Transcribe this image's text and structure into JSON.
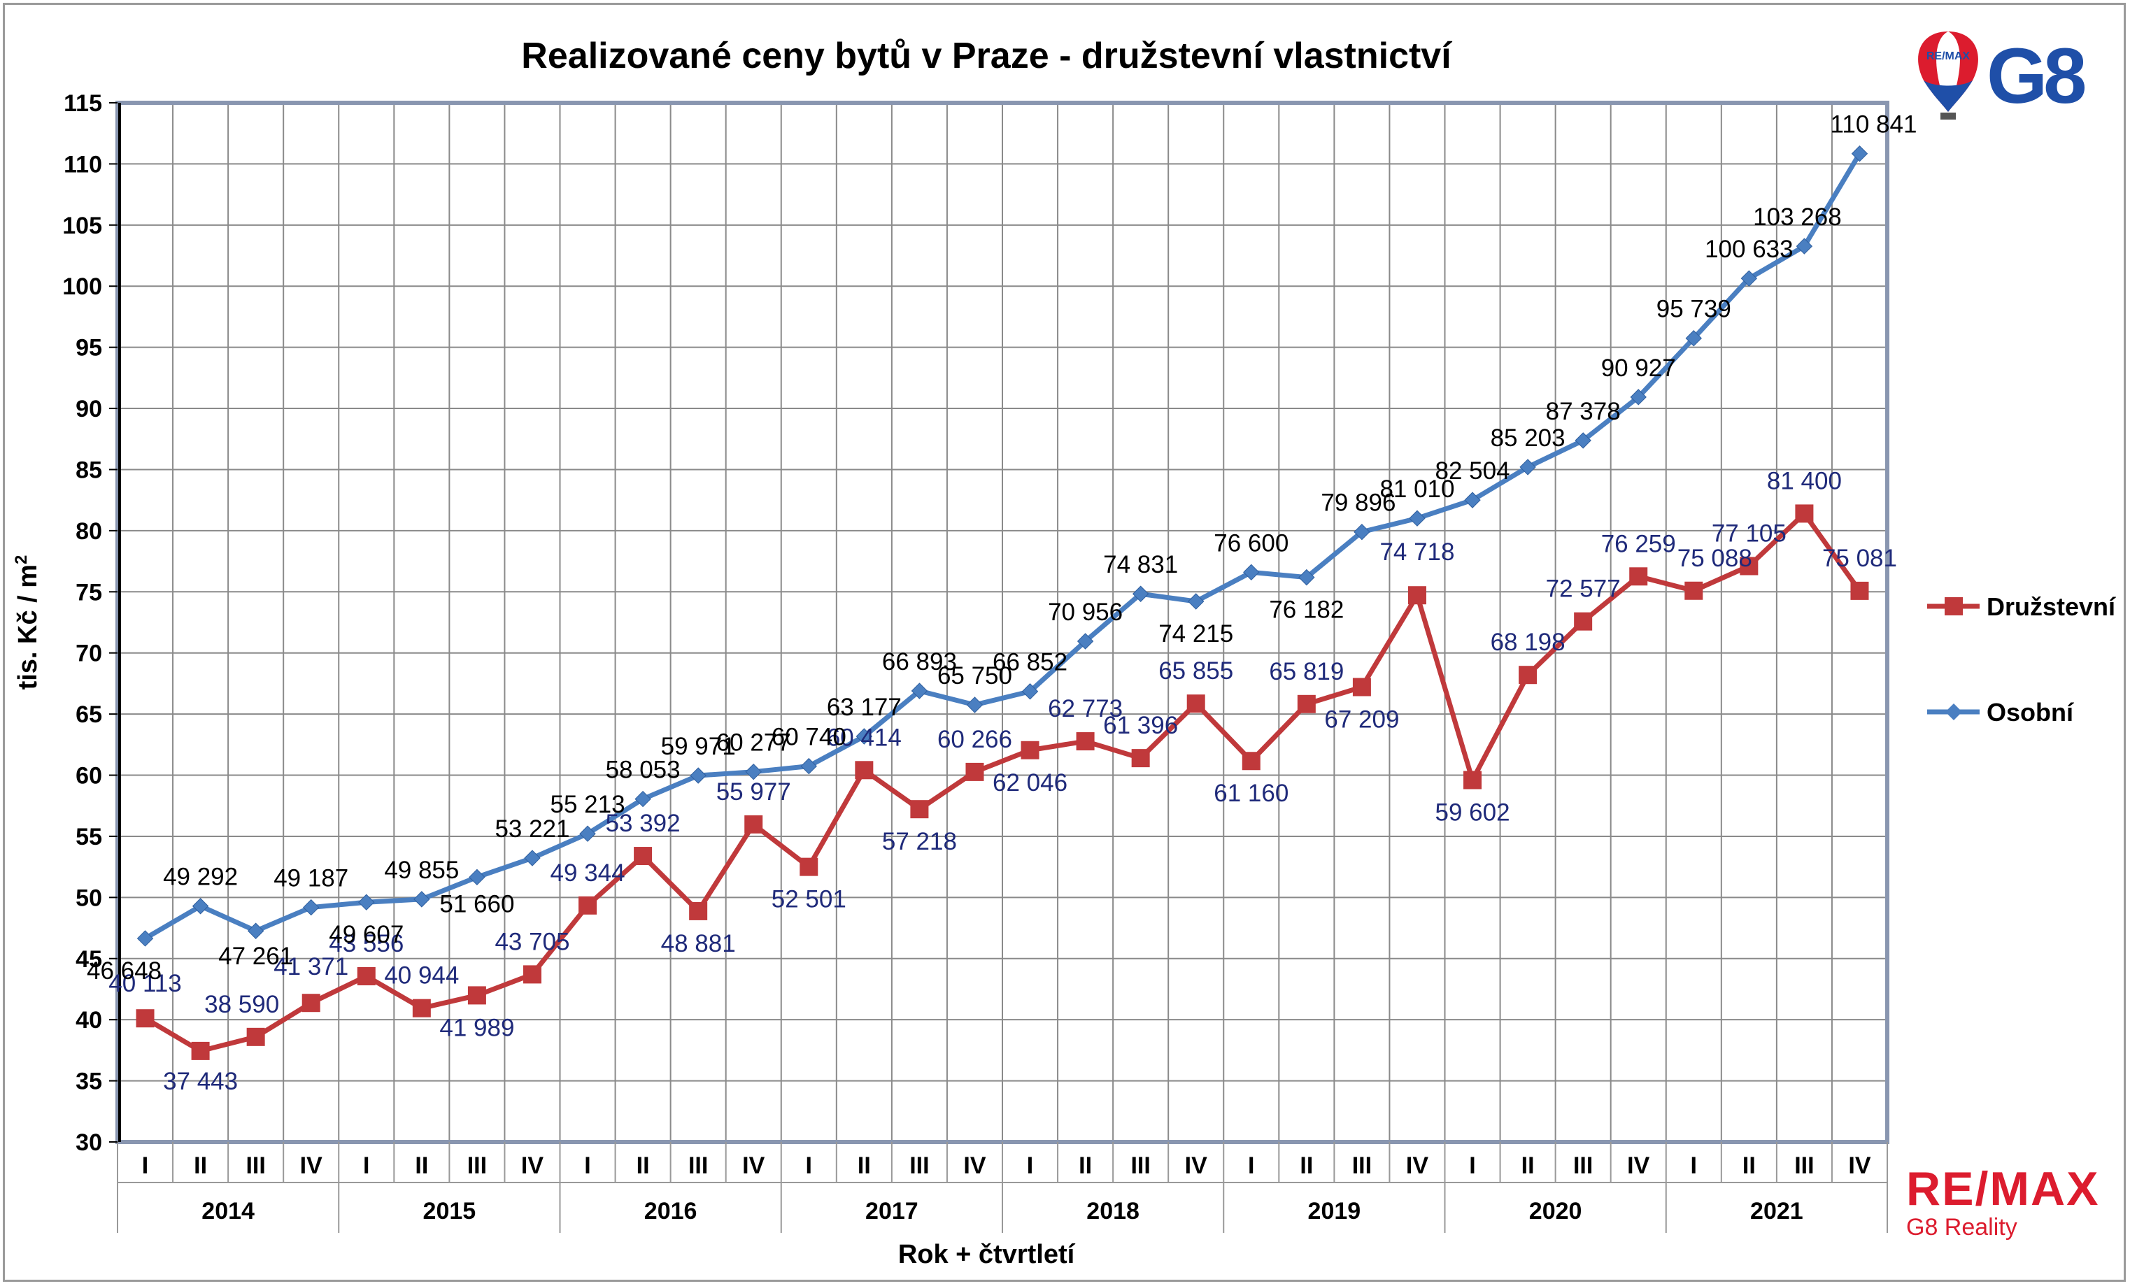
{
  "logos": {
    "balloon_text": "RE/MAX",
    "g8_text": "G8",
    "remax_wordmark": "RE/MAX",
    "remax_sub": "G8 Reality"
  },
  "colors": {
    "druzstevni": "#c0393b",
    "osobni": "#4a7fc1",
    "grid": "#8a8a8a",
    "plot_border": "#8996b0",
    "remax_red": "#dc1c2e",
    "remax_blue": "#1f4fa8"
  },
  "chart_data": {
    "type": "line",
    "title": "Realizované ceny bytů v Praze - družstevní vlastnictví",
    "xlabel": "Rok + čtvrtletí",
    "ylabel": "tis. Kč / m",
    "ylabel_sup": "2",
    "ylim": [
      30,
      115
    ],
    "yticks": [
      "30",
      "35",
      "40",
      "45",
      "50",
      "55",
      "60",
      "65",
      "70",
      "75",
      "80",
      "85",
      "90",
      "95",
      "100",
      "105",
      "110",
      "115"
    ],
    "grid": true,
    "legend_position": "right",
    "quarters": [
      "I",
      "II",
      "III",
      "IV",
      "I",
      "II",
      "III",
      "IV",
      "I",
      "II",
      "III",
      "IV",
      "I",
      "II",
      "III",
      "IV",
      "I",
      "II",
      "III",
      "IV",
      "I",
      "II",
      "III",
      "IV",
      "I",
      "II",
      "III",
      "IV",
      "I",
      "II",
      "III",
      "IV"
    ],
    "years": [
      "2014",
      "2015",
      "2016",
      "2017",
      "2018",
      "2019",
      "2020",
      "2021"
    ],
    "series": [
      {
        "name": "Družstevní",
        "color": "#c0393b",
        "marker": "square",
        "values": [
          40.113,
          37.443,
          38.59,
          41.371,
          43.556,
          40.944,
          41.989,
          43.705,
          49.344,
          53.392,
          48.881,
          55.977,
          52.501,
          60.414,
          57.218,
          60.266,
          62.046,
          62.773,
          61.396,
          65.855,
          61.16,
          65.819,
          67.209,
          74.718,
          59.602,
          68.198,
          72.577,
          76.259,
          75.088,
          77.105,
          81.4,
          75.081
        ],
        "labels": [
          "40 113",
          "37 443",
          "38 590",
          "41 371",
          "43 556",
          "40 944",
          "41 989",
          "43 705",
          "49 344",
          "53 392",
          "48 881",
          "55 977",
          "52 501",
          "60 414",
          "57 218",
          "60 266",
          "62 046",
          "62 773",
          "61 396",
          "65 855",
          "61 160",
          "65 819",
          "67 209",
          "74 718",
          "59 602",
          "68 198",
          "72 577",
          "76 259",
          "75 088",
          "77 105",
          "81 400",
          "75 081"
        ]
      },
      {
        "name": "Osobní",
        "color": "#4a7fc1",
        "marker": "diamond",
        "values": [
          46.648,
          49.292,
          47.261,
          49.187,
          49.607,
          49.855,
          51.66,
          53.221,
          55.213,
          58.053,
          59.971,
          60.277,
          60.74,
          63.177,
          66.893,
          65.75,
          66.852,
          70.956,
          74.831,
          74.215,
          76.6,
          76.182,
          79.896,
          81.01,
          82.504,
          85.203,
          87.378,
          90.927,
          95.739,
          100.633,
          103.268,
          110.841
        ],
        "labels": [
          "46 648",
          "49 292",
          "47 261",
          "49 187",
          "49 607",
          "49 855",
          "51 660",
          "53 221",
          "55 213",
          "58 053",
          "59 971",
          "60 277",
          "60 740",
          "63 177",
          "66 893",
          "65 750",
          "66 852",
          "70 956",
          "74 831",
          "74 215",
          "76 600",
          "76 182",
          "79 896",
          "81 010",
          "82 504",
          "85 203",
          "87 378",
          "90 927",
          "95 739",
          "100 633",
          "103 268",
          "110 841"
        ]
      }
    ]
  }
}
